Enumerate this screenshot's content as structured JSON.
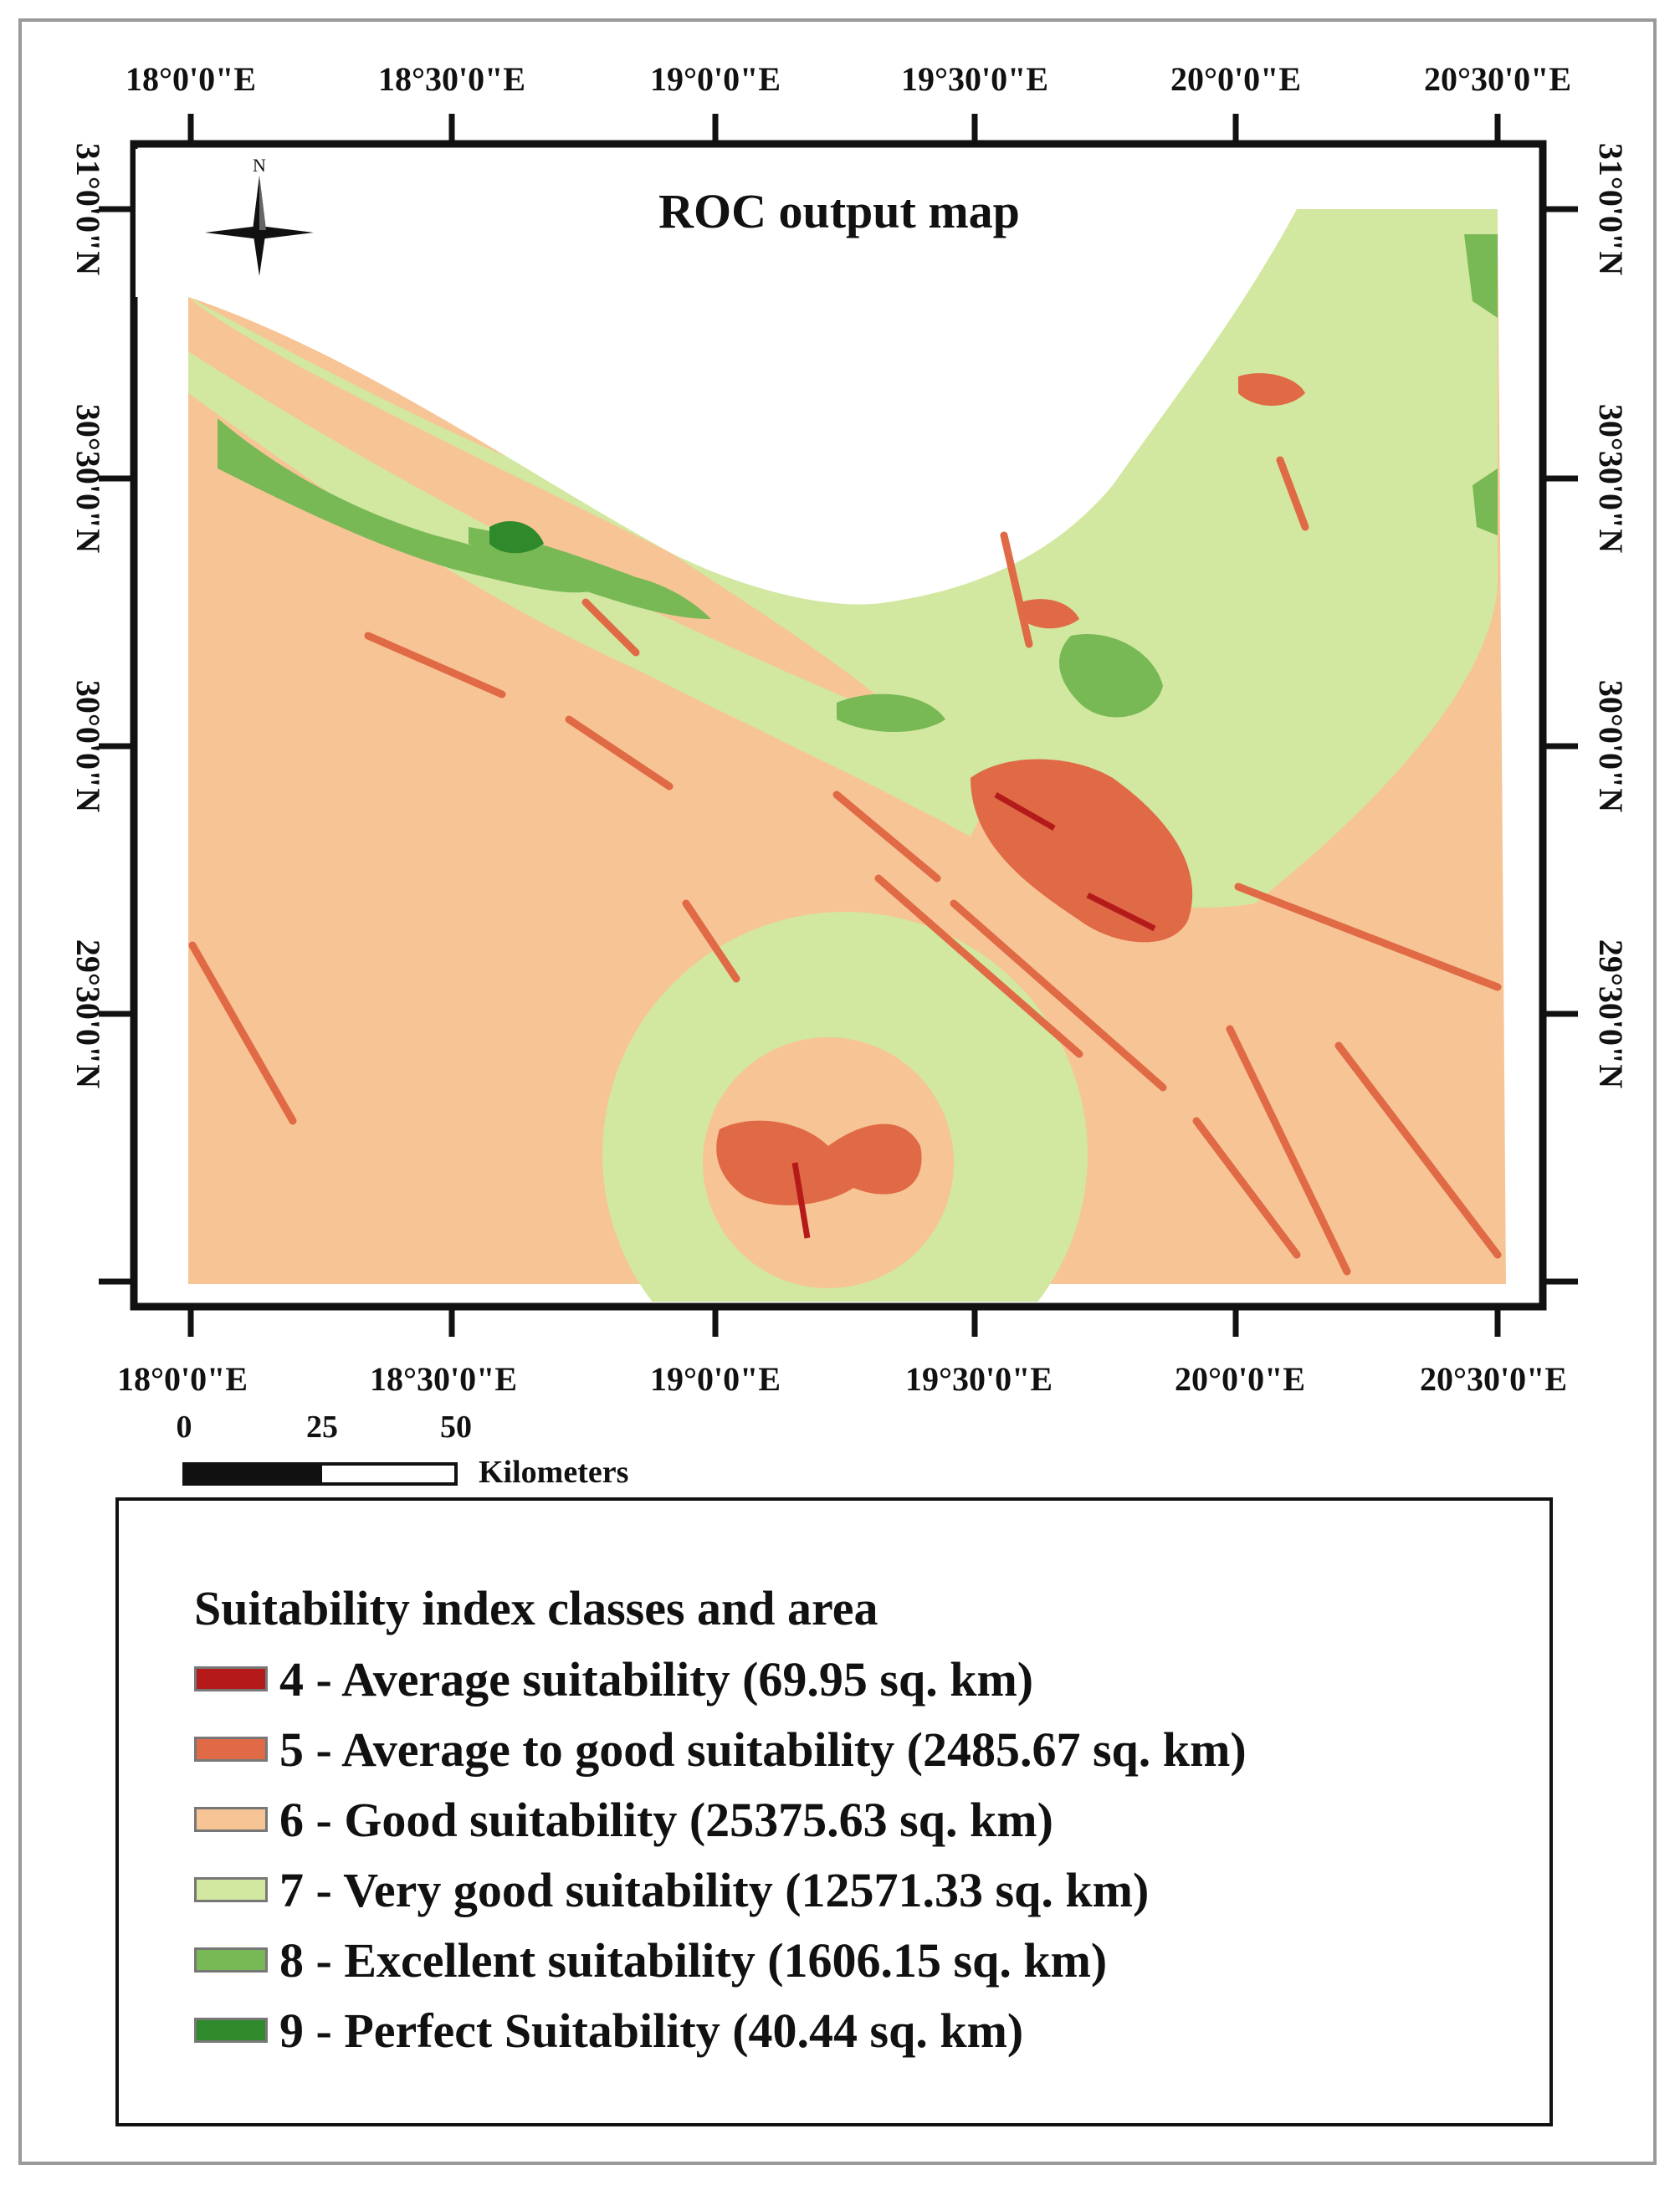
{
  "map": {
    "title": "ROC output map",
    "north_arrow_label": "N",
    "top_lon_labels": [
      "18°0'0\"E",
      "18°30'0\"E",
      "19°0'0\"E",
      "19°30'0\"E",
      "20°0'0\"E",
      "20°30'0\"E"
    ],
    "bottom_lon_labels": [
      "18°0'0\"E",
      "18°30'0\"E",
      "19°0'0\"E",
      "19°30'0\"E",
      "20°0'0\"E",
      "20°30'0\"E"
    ],
    "left_lat_labels": [
      "31°0'0\"N",
      "30°30'0\"N",
      "30°0'0\"N",
      "29°30'0\"N"
    ],
    "right_lat_labels": [
      "31°0'0\"N",
      "30°30'0\"N",
      "30°0'0\"N",
      "29°30'0\"N"
    ]
  },
  "scale_bar": {
    "ticks": [
      "0",
      "25",
      "50"
    ],
    "unit": "Kilometers"
  },
  "legend": {
    "title": "Suitability index classes and area",
    "items": [
      {
        "label": "4 - Average suitability (69.95 sq. km)",
        "color": "#b51a1a"
      },
      {
        "label": "5 - Average to good suitability (2485.67 sq. km)",
        "color": "#e06a45"
      },
      {
        "label": "6 - Good suitability (25375.63 sq. km)",
        "color": "#f7c495"
      },
      {
        "label": "7 - Very good suitability (12571.33 sq. km)",
        "color": "#d2e7a0"
      },
      {
        "label": "8 - Excellent suitability (1606.15 sq. km)",
        "color": "#78b955"
      },
      {
        "label": "9 - Perfect Suitability (40.44 sq. km)",
        "color": "#2f8a2c"
      }
    ]
  }
}
